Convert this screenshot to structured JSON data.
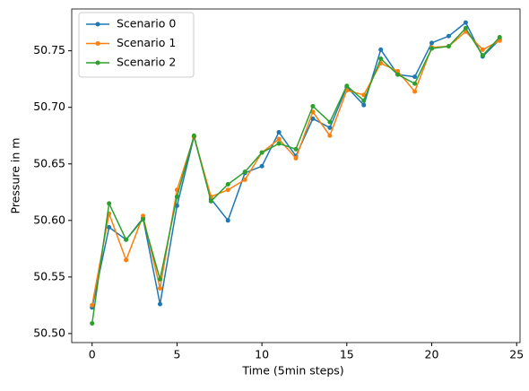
{
  "chart_data": {
    "type": "line",
    "xlabel": "Time (5min steps)",
    "ylabel": "Pressure in m",
    "x": [
      0,
      1,
      2,
      3,
      4,
      5,
      6,
      7,
      8,
      9,
      10,
      11,
      12,
      13,
      14,
      15,
      16,
      17,
      18,
      19,
      20,
      21,
      22,
      23,
      24
    ],
    "series": [
      {
        "name": "Scenario 0",
        "color": "#1f77b4",
        "values": [
          50.523,
          50.594,
          50.583,
          50.602,
          50.526,
          50.613,
          50.674,
          50.619,
          50.6,
          50.642,
          50.648,
          50.678,
          50.657,
          50.69,
          50.682,
          50.718,
          50.702,
          50.751,
          50.729,
          50.727,
          50.757,
          50.763,
          50.775,
          50.745,
          50.76
        ]
      },
      {
        "name": "Scenario 1",
        "color": "#ff7f0e",
        "values": [
          50.525,
          50.606,
          50.565,
          50.604,
          50.54,
          50.627,
          50.674,
          50.621,
          50.627,
          50.636,
          50.66,
          50.672,
          50.655,
          50.696,
          50.675,
          50.715,
          50.711,
          50.739,
          50.732,
          50.714,
          50.753,
          50.754,
          50.767,
          50.751,
          50.759
        ]
      },
      {
        "name": "Scenario 2",
        "color": "#2ca02c",
        "values": [
          50.509,
          50.615,
          50.583,
          50.601,
          50.548,
          50.621,
          50.675,
          50.617,
          50.632,
          50.643,
          50.66,
          50.668,
          50.663,
          50.701,
          50.687,
          50.719,
          50.706,
          50.743,
          50.729,
          50.721,
          50.752,
          50.754,
          50.77,
          50.746,
          50.762
        ]
      }
    ],
    "xlim": [
      -1.2,
      25.2
    ],
    "xticks": [
      0,
      5,
      10,
      15,
      20,
      25
    ],
    "ylim": [
      50.492,
      50.787
    ],
    "yticks": [
      {
        "value": 50.5,
        "label": "50.50"
      },
      {
        "value": 50.55,
        "label": "50.55"
      },
      {
        "value": 50.6,
        "label": "50.60"
      },
      {
        "value": 50.65,
        "label": "50.65"
      },
      {
        "value": 50.7,
        "label": "50.70"
      },
      {
        "value": 50.75,
        "label": "50.75"
      }
    ],
    "grid": false,
    "legend": "upper left"
  }
}
